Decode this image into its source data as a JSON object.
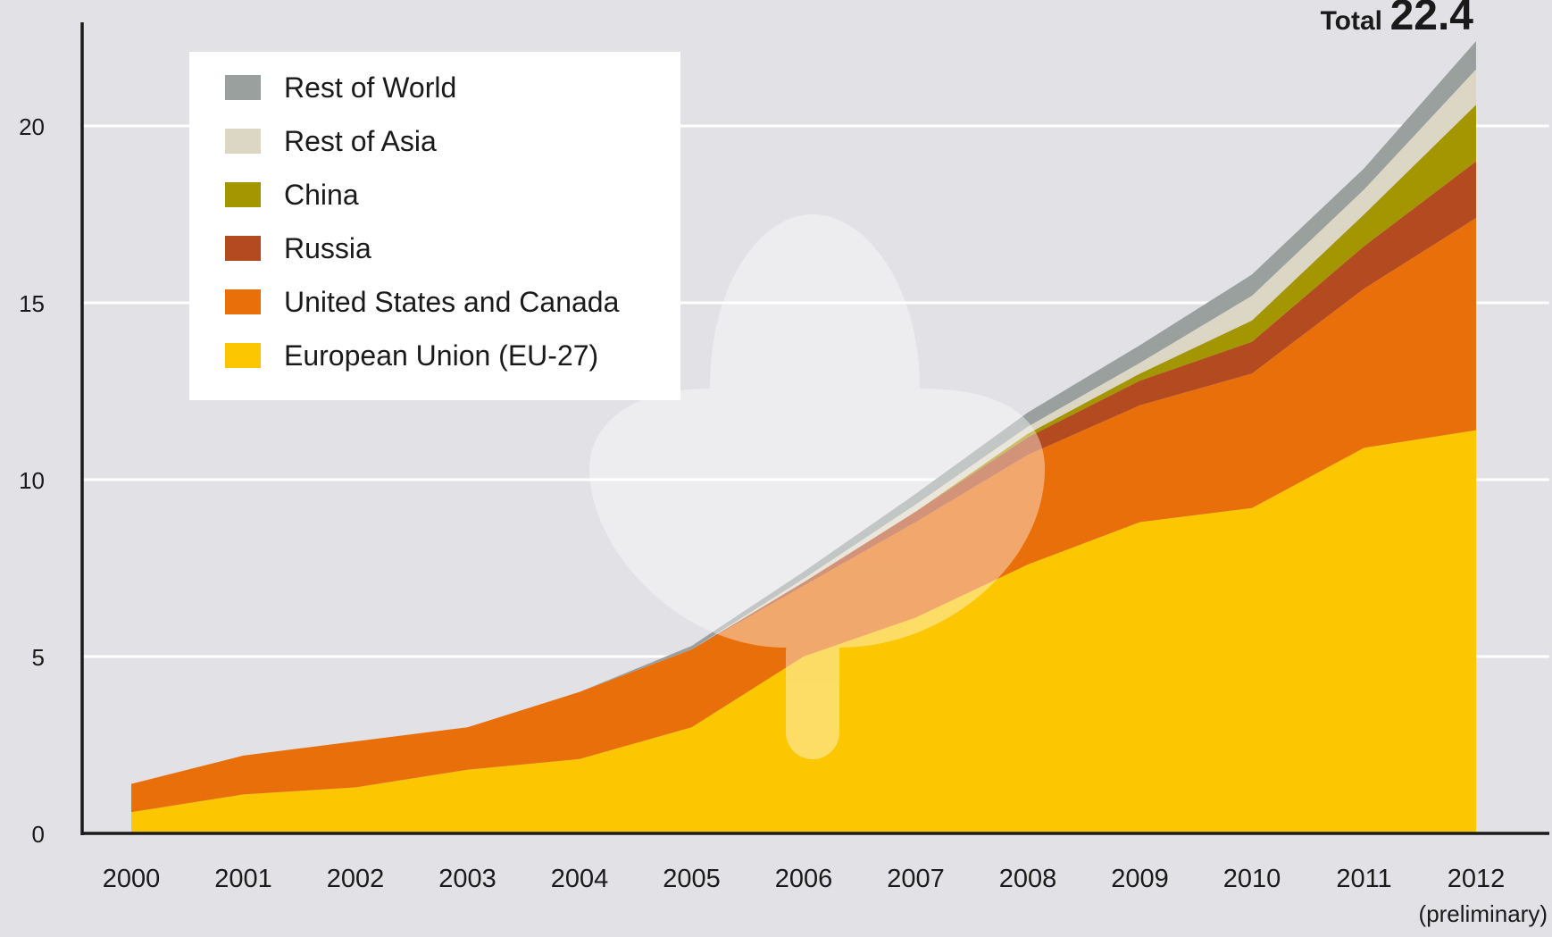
{
  "chart_data": {
    "type": "area",
    "stacked": true,
    "title": "",
    "xlabel": "",
    "ylabel": "",
    "x": [
      "2000",
      "2001",
      "2002",
      "2003",
      "2004",
      "2005",
      "2006",
      "2007",
      "2008",
      "2009",
      "2010",
      "2011",
      "2012"
    ],
    "x_note": "(preliminary)",
    "ylim": [
      0,
      23
    ],
    "yticks": [
      0,
      5,
      10,
      15,
      20
    ],
    "grid": true,
    "legend_position": "top-left",
    "total_label": "Total",
    "total_value": "22.4",
    "series": [
      {
        "name": "European Union (EU-27)",
        "color": "#fcc600",
        "values": [
          0.6,
          1.1,
          1.3,
          1.8,
          2.1,
          3.0,
          5.0,
          6.1,
          7.6,
          8.8,
          9.2,
          10.9,
          11.4
        ]
      },
      {
        "name": "United States and Canada",
        "color": "#e96f0a",
        "values": [
          0.8,
          1.1,
          1.3,
          1.2,
          1.9,
          2.2,
          2.0,
          2.7,
          3.1,
          3.3,
          3.8,
          4.5,
          6.0
        ]
      },
      {
        "name": "Russia",
        "color": "#b44b20",
        "values": [
          0.0,
          0.0,
          0.0,
          0.0,
          0.0,
          0.0,
          0.1,
          0.3,
          0.5,
          0.7,
          0.9,
          1.2,
          1.6
        ]
      },
      {
        "name": "China",
        "color": "#a49600",
        "values": [
          0.0,
          0.0,
          0.0,
          0.0,
          0.0,
          0.0,
          0.0,
          0.0,
          0.1,
          0.2,
          0.6,
          0.9,
          1.6
        ]
      },
      {
        "name": "Rest of Asia",
        "color": "#dcd6c4",
        "values": [
          0.0,
          0.0,
          0.0,
          0.0,
          0.0,
          0.0,
          0.1,
          0.2,
          0.2,
          0.3,
          0.7,
          0.7,
          1.0
        ]
      },
      {
        "name": "Rest of World",
        "color": "#9aa09e",
        "values": [
          0.0,
          0.0,
          0.0,
          0.0,
          0.0,
          0.1,
          0.2,
          0.3,
          0.4,
          0.5,
          0.6,
          0.6,
          0.8
        ]
      }
    ]
  }
}
